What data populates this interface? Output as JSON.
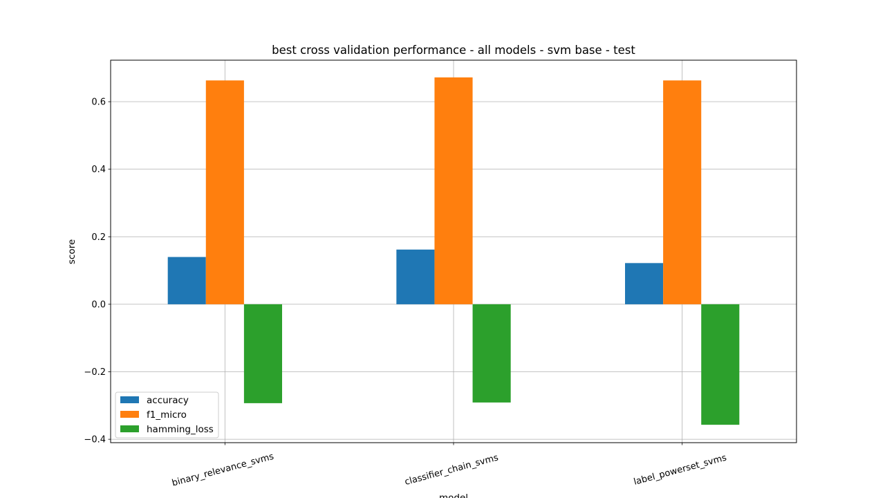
{
  "chart_data": {
    "type": "bar",
    "title": "best cross validation performance - all models - svm base - test",
    "xlabel": "model",
    "ylabel": "score",
    "categories": [
      "binary_relevance_svms",
      "classifier_chain_svms",
      "label_powerset_svms"
    ],
    "series": [
      {
        "name": "accuracy",
        "color": "#1f77b4",
        "values": [
          0.14,
          0.162,
          0.122
        ]
      },
      {
        "name": "f1_micro",
        "color": "#ff7f0e",
        "values": [
          0.663,
          0.672,
          0.663
        ]
      },
      {
        "name": "hamming_loss",
        "color": "#2ca02c",
        "values": [
          -0.293,
          -0.291,
          -0.357
        ]
      }
    ],
    "ylim": [
      -0.41,
      0.723
    ],
    "yticks": [
      -0.4,
      -0.2,
      0.0,
      0.2,
      0.4,
      0.6
    ],
    "ytick_labels": [
      "−0.4",
      "−0.2",
      "0.0",
      "0.2",
      "0.4",
      "0.6"
    ],
    "grid": true,
    "legend_position": "lower-left"
  }
}
